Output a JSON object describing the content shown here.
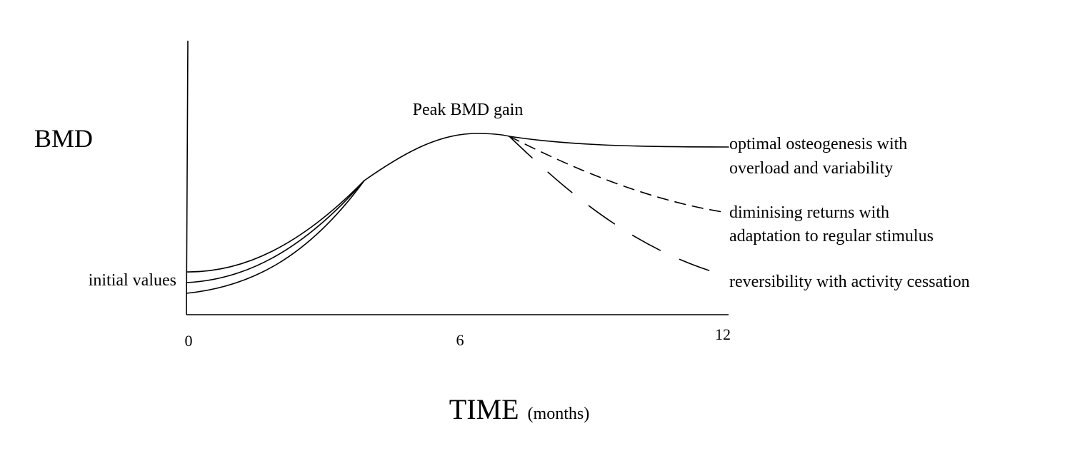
{
  "axes": {
    "y_label": "BMD",
    "x_label_main": "TIME",
    "x_label_unit": "(months)",
    "x_ticks": [
      "0",
      "6",
      "12"
    ]
  },
  "annotations": {
    "peak": "Peak BMD gain",
    "initial": "initial values"
  },
  "outcomes": [
    {
      "line1": "optimal osteogenesis with",
      "line2": "overload and variability",
      "style": "solid"
    },
    {
      "line1": "diminising returns with",
      "line2": "adaptation to regular stimulus",
      "style": "short-dash"
    },
    {
      "line1": "reversibility with activity cessation",
      "line2": "",
      "style": "long-dash"
    }
  ],
  "colors": {
    "ink": "#000000",
    "background": "#ffffff"
  }
}
